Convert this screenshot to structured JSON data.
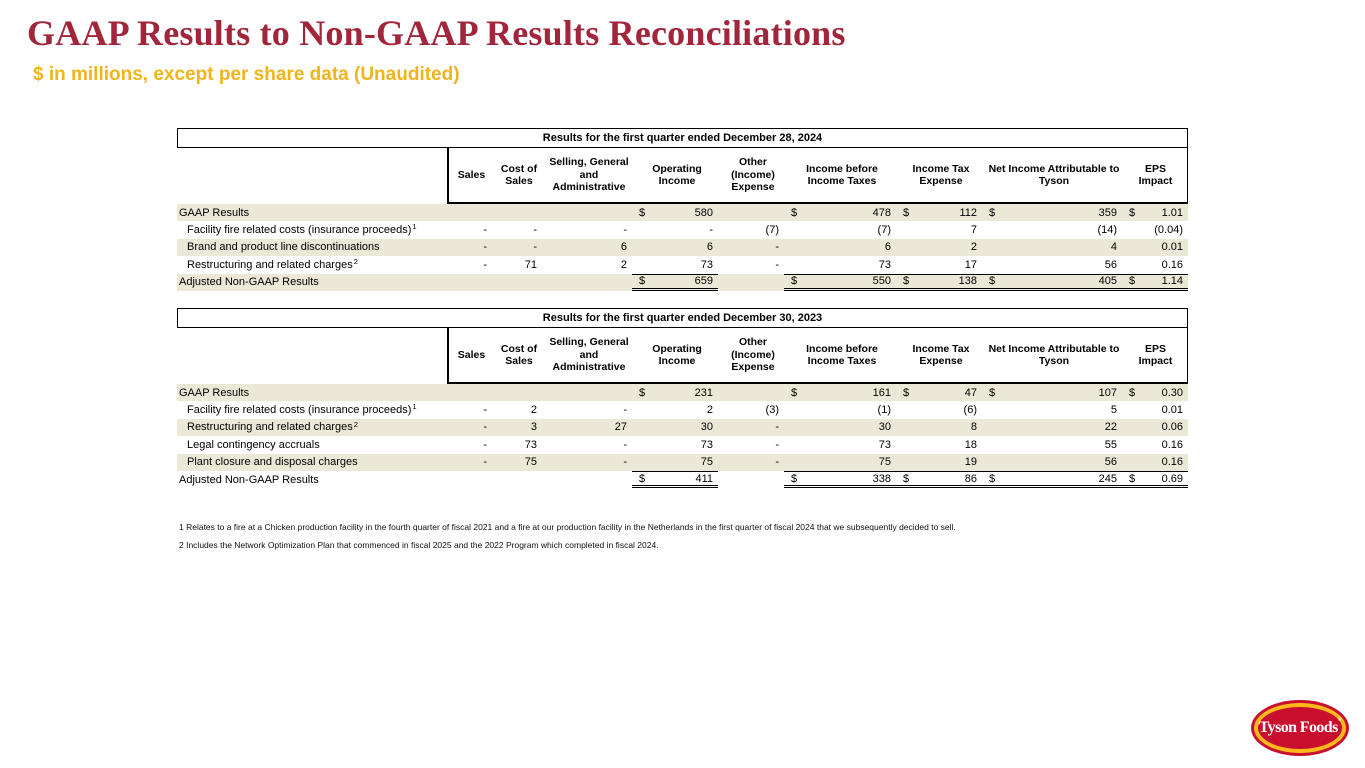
{
  "slide": {
    "title": "GAAP Results to Non-GAAP Results Reconciliations",
    "subtitle": "$ in millions, except per share data (Unaudited)"
  },
  "colors": {
    "title_red": "#A2263B",
    "subtitle_gold": "#F0B41C",
    "row_shade_beige": "#ECE8D8",
    "logo_red": "#C8102E",
    "logo_gold": "#FFB81C"
  },
  "columns": [
    "Sales",
    "Cost of Sales",
    "Selling, General and Administrative",
    "Operating Income",
    "Other (Income) Expense",
    "Income before Income Taxes",
    "Income Tax Expense",
    "Net Income Attributable to Tyson",
    "EPS Impact"
  ],
  "tables": [
    {
      "caption": "Results for the first quarter ended December 28, 2024",
      "rows": [
        {
          "label": "GAAP Results",
          "sup": "",
          "indent": false,
          "shaded": true,
          "total": false,
          "cells": [
            [
              "",
              ""
            ],
            [
              "",
              ""
            ],
            [
              "",
              ""
            ],
            [
              "$",
              "580"
            ],
            [
              "",
              ""
            ],
            [
              "$",
              "478"
            ],
            [
              "$",
              "112"
            ],
            [
              "$",
              "359"
            ],
            [
              "$",
              "1.01"
            ]
          ]
        },
        {
          "label": "Facility fire related costs (insurance proceeds)",
          "sup": "1",
          "indent": true,
          "shaded": false,
          "total": false,
          "cells": [
            [
              "",
              "-"
            ],
            [
              "",
              "-"
            ],
            [
              "",
              "-"
            ],
            [
              "",
              "-"
            ],
            [
              "",
              "(7)"
            ],
            [
              "",
              "(7)"
            ],
            [
              "",
              "7"
            ],
            [
              "",
              "(14)"
            ],
            [
              "",
              "(0.04)"
            ]
          ]
        },
        {
          "label": "Brand and product line discontinuations",
          "sup": "",
          "indent": true,
          "shaded": true,
          "total": false,
          "cells": [
            [
              "",
              "-"
            ],
            [
              "",
              "-"
            ],
            [
              "",
              "6"
            ],
            [
              "",
              "6"
            ],
            [
              "",
              "-"
            ],
            [
              "",
              "6"
            ],
            [
              "",
              "2"
            ],
            [
              "",
              "4"
            ],
            [
              "",
              "0.01"
            ]
          ]
        },
        {
          "label": "Restructuring and related charges",
          "sup": "2",
          "indent": true,
          "shaded": false,
          "total": false,
          "cells": [
            [
              "",
              "-"
            ],
            [
              "",
              "71"
            ],
            [
              "",
              "2"
            ],
            [
              "",
              "73"
            ],
            [
              "",
              "-"
            ],
            [
              "",
              "73"
            ],
            [
              "",
              "17"
            ],
            [
              "",
              "56"
            ],
            [
              "",
              "0.16"
            ]
          ]
        },
        {
          "label": "Adjusted Non-GAAP Results",
          "sup": "",
          "indent": false,
          "shaded": true,
          "total": true,
          "cells": [
            [
              "",
              ""
            ],
            [
              "",
              ""
            ],
            [
              "",
              ""
            ],
            [
              "$",
              "659"
            ],
            [
              "",
              ""
            ],
            [
              "$",
              "550"
            ],
            [
              "$",
              "138"
            ],
            [
              "$",
              "405"
            ],
            [
              "$",
              "1.14"
            ]
          ]
        }
      ]
    },
    {
      "caption": "Results for the first quarter ended December 30, 2023",
      "rows": [
        {
          "label": "GAAP Results",
          "sup": "",
          "indent": false,
          "shaded": true,
          "total": false,
          "cells": [
            [
              "",
              ""
            ],
            [
              "",
              ""
            ],
            [
              "",
              ""
            ],
            [
              "$",
              "231"
            ],
            [
              "",
              ""
            ],
            [
              "$",
              "161"
            ],
            [
              "$",
              "47"
            ],
            [
              "$",
              "107"
            ],
            [
              "$",
              "0.30"
            ]
          ]
        },
        {
          "label": "Facility fire related costs (insurance proceeds)",
          "sup": "1",
          "indent": true,
          "shaded": false,
          "total": false,
          "cells": [
            [
              "",
              "-"
            ],
            [
              "",
              "2"
            ],
            [
              "",
              "-"
            ],
            [
              "",
              "2"
            ],
            [
              "",
              "(3)"
            ],
            [
              "",
              "(1)"
            ],
            [
              "",
              "(6)"
            ],
            [
              "",
              "5"
            ],
            [
              "",
              "0.01"
            ]
          ]
        },
        {
          "label": "Restructuring and related charges",
          "sup": "2",
          "indent": true,
          "shaded": true,
          "total": false,
          "cells": [
            [
              "",
              "-"
            ],
            [
              "",
              "3"
            ],
            [
              "",
              "27"
            ],
            [
              "",
              "30"
            ],
            [
              "",
              "-"
            ],
            [
              "",
              "30"
            ],
            [
              "",
              "8"
            ],
            [
              "",
              "22"
            ],
            [
              "",
              "0.06"
            ]
          ]
        },
        {
          "label": "Legal contingency accruals",
          "sup": "",
          "indent": true,
          "shaded": false,
          "total": false,
          "cells": [
            [
              "",
              "-"
            ],
            [
              "",
              "73"
            ],
            [
              "",
              "-"
            ],
            [
              "",
              "73"
            ],
            [
              "",
              "-"
            ],
            [
              "",
              "73"
            ],
            [
              "",
              "18"
            ],
            [
              "",
              "55"
            ],
            [
              "",
              "0.16"
            ]
          ]
        },
        {
          "label": "Plant closure and disposal charges",
          "sup": "",
          "indent": true,
          "shaded": true,
          "total": false,
          "cells": [
            [
              "",
              "-"
            ],
            [
              "",
              "75"
            ],
            [
              "",
              "-"
            ],
            [
              "",
              "75"
            ],
            [
              "",
              "-"
            ],
            [
              "",
              "75"
            ],
            [
              "",
              "19"
            ],
            [
              "",
              "56"
            ],
            [
              "",
              "0.16"
            ]
          ]
        },
        {
          "label": "Adjusted Non-GAAP Results",
          "sup": "",
          "indent": false,
          "shaded": false,
          "total": true,
          "cells": [
            [
              "",
              ""
            ],
            [
              "",
              ""
            ],
            [
              "",
              ""
            ],
            [
              "$",
              "411"
            ],
            [
              "",
              ""
            ],
            [
              "$",
              "338"
            ],
            [
              "$",
              "86"
            ],
            [
              "$",
              "245"
            ],
            [
              "$",
              "0.69"
            ]
          ]
        }
      ]
    }
  ],
  "footnotes": [
    "1 Relates to a fire at a Chicken production facility in the fourth quarter of fiscal 2021 and a fire at our production facility in the Netherlands in the first quarter of fiscal 2024 that we subsequently decided to sell.",
    "2 Includes the Network Optimization Plan that commenced in fiscal 2025 and the 2022 Program which completed in fiscal 2024."
  ],
  "logo": {
    "text": "Tyson Foods",
    "reg": "®"
  }
}
